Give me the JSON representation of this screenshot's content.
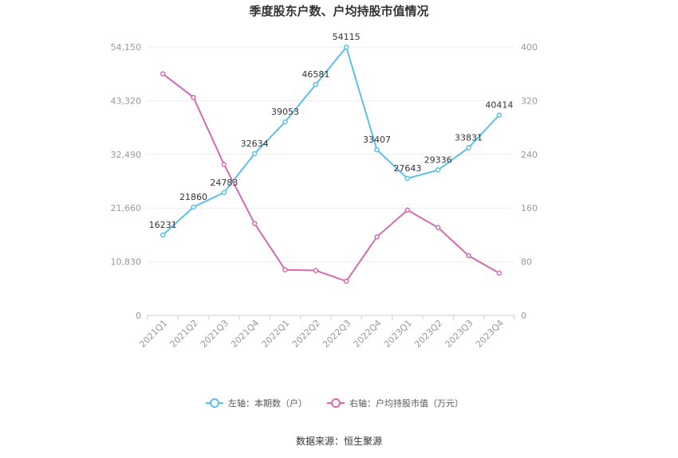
{
  "chart_data": {
    "type": "line",
    "title": "季度股东户数、户均持股市值情况",
    "categories": [
      "2021Q1",
      "2021Q2",
      "2021Q3",
      "2021Q4",
      "2022Q1",
      "2022Q2",
      "2022Q3",
      "2022Q4",
      "2023Q1",
      "2023Q2",
      "2023Q3",
      "2023Q4"
    ],
    "series": [
      {
        "name": "左轴：本期数（户）",
        "axis": "left",
        "color": "#5bc0eb",
        "values": [
          16231,
          21860,
          24783,
          32634,
          39053,
          46581,
          54115,
          33407,
          27643,
          29336,
          33831,
          40414
        ],
        "data_labels": [
          "16231",
          "21860",
          "24783",
          "32634",
          "39053",
          "46581",
          "54115",
          "33407",
          "27643",
          "29336",
          "33831",
          "40414"
        ]
      },
      {
        "name": "右轴：户均持股市值（万元）",
        "axis": "right",
        "color": "#d36bb0",
        "values": [
          360,
          325,
          225,
          137,
          68,
          67,
          51,
          117,
          157,
          131,
          89,
          63
        ]
      }
    ],
    "left_axis": {
      "min": 0,
      "max": 54150,
      "ticks": [
        0,
        10830,
        21660,
        32490,
        43320,
        54150
      ],
      "tick_labels": [
        "0",
        "10,830",
        "21,660",
        "32,490",
        "43,320",
        "54,150"
      ]
    },
    "right_axis": {
      "min": 0,
      "max": 400,
      "ticks": [
        0,
        80,
        160,
        240,
        320,
        400
      ],
      "tick_labels": [
        "0",
        "80",
        "160",
        "240",
        "320",
        "400"
      ]
    },
    "grid": true,
    "legend_position": "bottom",
    "source": "数据来源：恒生聚源"
  }
}
